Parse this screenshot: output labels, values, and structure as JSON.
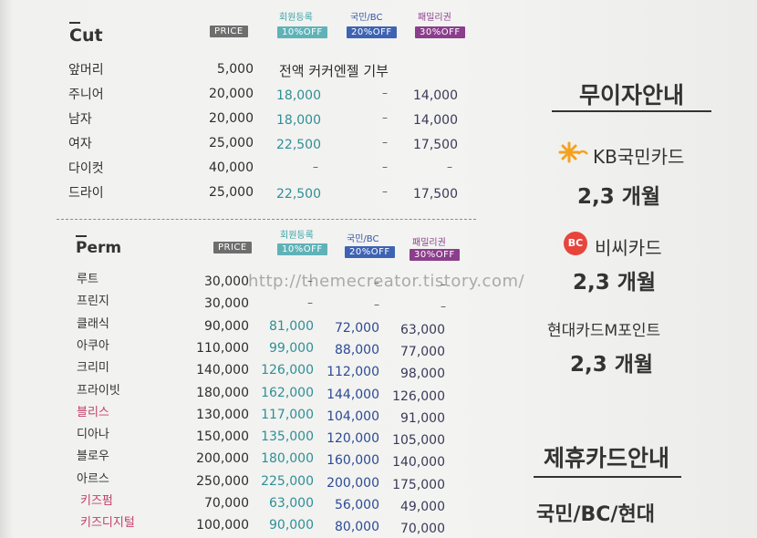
{
  "cut": {
    "title": "Cut",
    "headers": {
      "price": "PRICE",
      "d10_label": "회원등록",
      "d10_tag": "10%OFF",
      "d20_label": "국민/BC",
      "d20_tag": "20%OFF",
      "d30_label": "패밀리권",
      "d30_tag": "30%OFF"
    },
    "note": "전액 커커엔젤 기부",
    "rows": [
      {
        "name": "앞머리",
        "price": "5,000",
        "d10": "",
        "d20": "",
        "d30": ""
      },
      {
        "name": "주니어",
        "price": "20,000",
        "d10": "18,000",
        "d20": "–",
        "d30": "14,000"
      },
      {
        "name": "남자",
        "price": "20,000",
        "d10": "18,000",
        "d20": "–",
        "d30": "14,000"
      },
      {
        "name": "여자",
        "price": "25,000",
        "d10": "22,500",
        "d20": "–",
        "d30": "17,500"
      },
      {
        "name": "다이컷",
        "price": "40,000",
        "d10": "–",
        "d20": "–",
        "d30": "–"
      },
      {
        "name": "드라이",
        "price": "25,000",
        "d10": "22,500",
        "d20": "–",
        "d30": "17,500"
      }
    ]
  },
  "perm": {
    "title": "Perm",
    "headers": {
      "price": "PRICE",
      "d10_label": "회원등록",
      "d10_tag": "10%OFF",
      "d20_label": "국민/BC",
      "d20_tag": "20%OFF",
      "d30_label": "패밀리권",
      "d30_tag": "30%OFF"
    },
    "rows": [
      {
        "name": "루트",
        "price": "30,000",
        "d10": "–",
        "d20": "–",
        "d30": "–",
        "pink": false
      },
      {
        "name": "프린지",
        "price": "30,000",
        "d10": "–",
        "d20": "–",
        "d30": "–",
        "pink": false
      },
      {
        "name": "클래식",
        "price": "90,000",
        "d10": "81,000",
        "d20": "72,000",
        "d30": "63,000",
        "pink": false
      },
      {
        "name": "아쿠아",
        "price": "110,000",
        "d10": "99,000",
        "d20": "88,000",
        "d30": "77,000",
        "pink": false
      },
      {
        "name": "크리미",
        "price": "140,000",
        "d10": "126,000",
        "d20": "112,000",
        "d30": "98,000",
        "pink": false
      },
      {
        "name": "프라이빗",
        "price": "180,000",
        "d10": "162,000",
        "d20": "144,000",
        "d30": "126,000",
        "pink": false
      },
      {
        "name": "블리스",
        "price": "130,000",
        "d10": "117,000",
        "d20": "104,000",
        "d30": "91,000",
        "pink": true
      },
      {
        "name": "디아나",
        "price": "150,000",
        "d10": "135,000",
        "d20": "120,000",
        "d30": "105,000",
        "pink": false
      },
      {
        "name": "블로우",
        "price": "200,000",
        "d10": "180,000",
        "d20": "160,000",
        "d30": "140,000",
        "pink": false
      },
      {
        "name": "아르스",
        "price": "250,000",
        "d10": "225,000",
        "d20": "200,000",
        "d30": "175,000",
        "pink": false
      },
      {
        "name": "키즈펌",
        "price": "70,000",
        "d10": "63,000",
        "d20": "56,000",
        "d30": "49,000",
        "pink": true
      },
      {
        "name": "키즈디지털",
        "price": "100,000",
        "d10": "90,000",
        "d20": "80,000",
        "d30": "70,000",
        "pink": true
      }
    ]
  },
  "watermark": "http://themecreator.tistory.com/",
  "sidebar": {
    "installment_title": "무이자안내",
    "cards": [
      {
        "name": "KB국민카드",
        "months": "2,3 개월",
        "logo_color": "#f4a21e"
      },
      {
        "name": "비씨카드",
        "months": "2,3 개월",
        "logo_color": "#e8443c"
      },
      {
        "name": "현대카드M포인트",
        "months": "2,3 개월",
        "logo_color": "#2a3f9e"
      }
    ],
    "partner_title": "제휴카드안내",
    "partner_text": "국민/BC/현대"
  }
}
